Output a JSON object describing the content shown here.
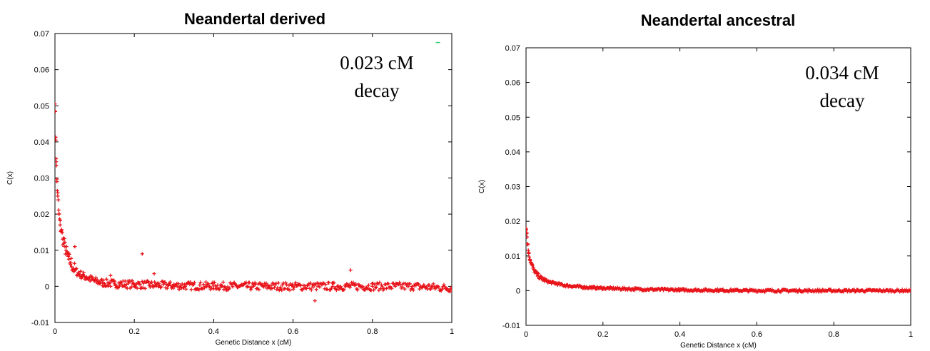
{
  "chart_data": [
    {
      "type": "scatter",
      "title": "Neandertal derived",
      "xlabel": "Genetic Distance x (cM)",
      "ylabel": "C(x)",
      "xlim": [
        0,
        1
      ],
      "ylim": [
        -0.01,
        0.07
      ],
      "xticks": [
        "0",
        "0.2",
        "0.4",
        "0.6",
        "0.8",
        "1"
      ],
      "yticks": [
        "-0.01",
        "0",
        "0.01",
        "0.02",
        "0.03",
        "0.04",
        "0.05",
        "0.06",
        "0.07"
      ],
      "annotation": [
        "0.023 cM",
        "decay"
      ],
      "grid": false,
      "series": [
        {
          "color": "#e8141b",
          "marker": "plus",
          "decay_cM": 0.023,
          "points": [
            {
              "x": 0.0,
              "y": 0.0505
            },
            {
              "x": 0.002,
              "y": 0.0405
            },
            {
              "x": 0.003,
              "y": 0.0345
            },
            {
              "x": 0.005,
              "y": 0.029
            },
            {
              "x": 0.007,
              "y": 0.025
            },
            {
              "x": 0.01,
              "y": 0.02
            },
            {
              "x": 0.013,
              "y": 0.017
            },
            {
              "x": 0.016,
              "y": 0.0155
            },
            {
              "x": 0.02,
              "y": 0.013
            },
            {
              "x": 0.025,
              "y": 0.011
            },
            {
              "x": 0.03,
              "y": 0.009
            },
            {
              "x": 0.035,
              "y": 0.0075
            },
            {
              "x": 0.04,
              "y": 0.0065
            },
            {
              "x": 0.05,
              "y": 0.0045
            },
            {
              "x": 0.06,
              "y": 0.0035
            },
            {
              "x": 0.07,
              "y": 0.003
            },
            {
              "x": 0.08,
              "y": 0.0025
            },
            {
              "x": 0.1,
              "y": 0.0015
            },
            {
              "x": 0.12,
              "y": 0.001
            },
            {
              "x": 0.15,
              "y": 0.0007
            },
            {
              "x": 0.2,
              "y": 0.0005
            },
            {
              "x": 0.3,
              "y": 0.0002
            },
            {
              "x": 0.4,
              "y": 0.0001
            },
            {
              "x": 0.5,
              "y": 0.0
            },
            {
              "x": 0.6,
              "y": 0.0
            },
            {
              "x": 0.7,
              "y": 0.0
            },
            {
              "x": 0.8,
              "y": 0.0
            },
            {
              "x": 0.9,
              "y": 0.0
            },
            {
              "x": 1.0,
              "y": -0.0005
            }
          ],
          "outliers": [
            {
              "x": 0.22,
              "y": 0.009
            },
            {
              "x": 0.745,
              "y": 0.0045
            },
            {
              "x": 0.655,
              "y": -0.004
            },
            {
              "x": 0.25,
              "y": 0.0035
            },
            {
              "x": 0.14,
              "y": 0.003
            },
            {
              "x": 0.05,
              "y": 0.011
            }
          ]
        },
        {
          "color": "#2ecc71",
          "marker": "dot",
          "role": "fit",
          "points": [
            {
              "x": 0.965,
              "y": 0.0675
            }
          ]
        }
      ]
    },
    {
      "type": "scatter",
      "title": "Neandertal ancestral",
      "xlabel": "Genetic Distance x (cM)",
      "ylabel": "C(x)",
      "xlim": [
        0,
        1
      ],
      "ylim": [
        -0.01,
        0.07
      ],
      "xticks": [
        "0",
        "0.2",
        "0.4",
        "0.6",
        "0.8",
        "1"
      ],
      "yticks": [
        "-0.01",
        "0",
        "0.01",
        "0.02",
        "0.03",
        "0.04",
        "0.05",
        "0.06",
        "0.07"
      ],
      "annotation": [
        "0.034 cM",
        "decay"
      ],
      "grid": false,
      "series": [
        {
          "color": "#e8141b",
          "marker": "plus",
          "decay_cM": 0.034,
          "points": [
            {
              "x": 0.0,
              "y": 0.018
            },
            {
              "x": 0.002,
              "y": 0.0165
            },
            {
              "x": 0.004,
              "y": 0.0135
            },
            {
              "x": 0.007,
              "y": 0.011
            },
            {
              "x": 0.01,
              "y": 0.009
            },
            {
              "x": 0.015,
              "y": 0.0075
            },
            {
              "x": 0.02,
              "y": 0.006
            },
            {
              "x": 0.03,
              "y": 0.0045
            },
            {
              "x": 0.04,
              "y": 0.0035
            },
            {
              "x": 0.06,
              "y": 0.0025
            },
            {
              "x": 0.08,
              "y": 0.002
            },
            {
              "x": 0.1,
              "y": 0.0015
            },
            {
              "x": 0.15,
              "y": 0.001
            },
            {
              "x": 0.2,
              "y": 0.0007
            },
            {
              "x": 0.3,
              "y": 0.0004
            },
            {
              "x": 0.4,
              "y": 0.0002
            },
            {
              "x": 0.5,
              "y": 0.0001
            },
            {
              "x": 0.6,
              "y": 0.0
            },
            {
              "x": 0.7,
              "y": 0.0
            },
            {
              "x": 0.8,
              "y": 0.0
            },
            {
              "x": 0.9,
              "y": 0.0
            },
            {
              "x": 1.0,
              "y": 0.0
            }
          ],
          "outliers": []
        }
      ]
    }
  ]
}
